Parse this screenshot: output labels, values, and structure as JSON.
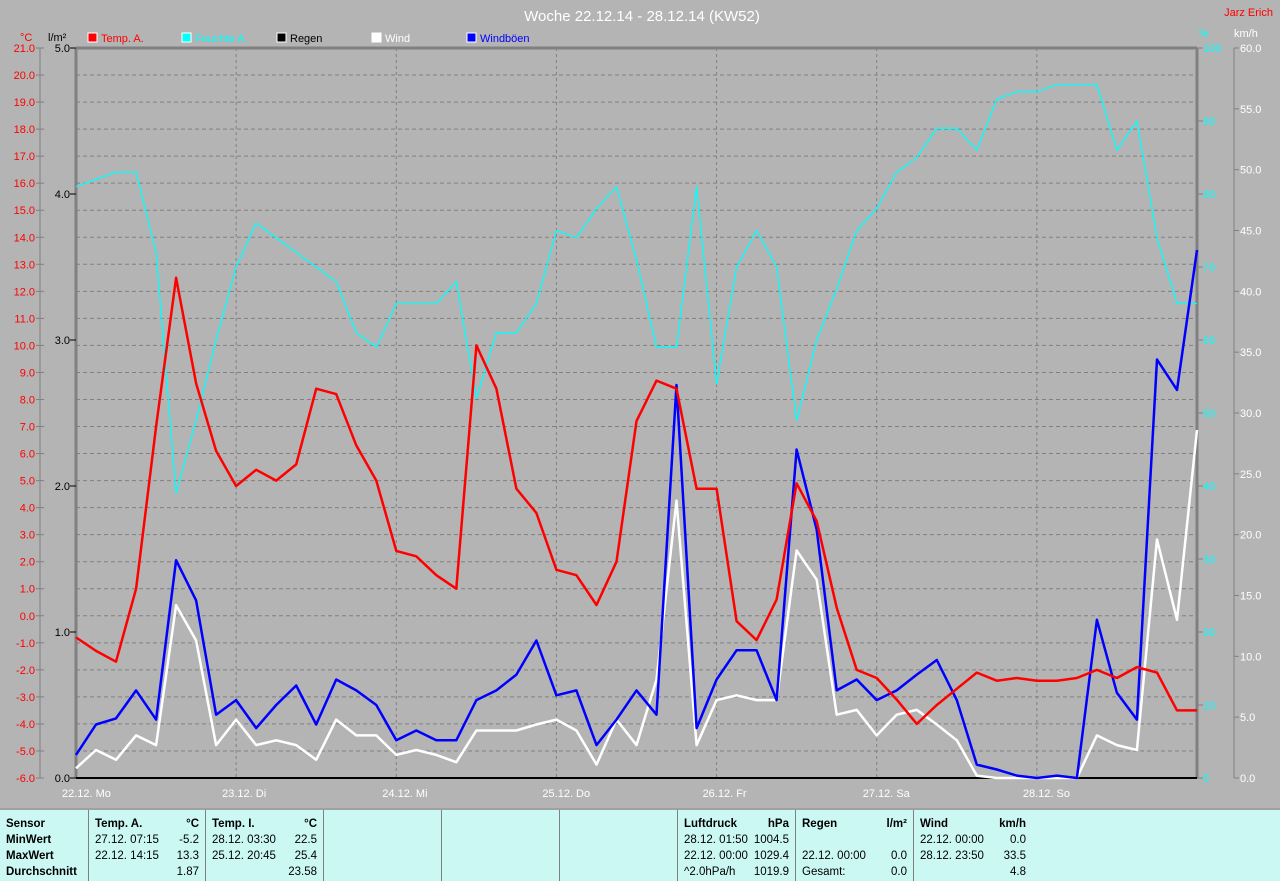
{
  "chart_data": {
    "type": "line",
    "title": "Woche 22.12.14 - 28.12.14 (KW52)",
    "author": "Jarz Erich",
    "axes": {
      "temp": {
        "unit": "°C",
        "range": [
          -6.0,
          21.0
        ],
        "step": 1.0,
        "color": "#ff0000"
      },
      "rain": {
        "unit": "l/m²",
        "range": [
          0.0,
          5.0
        ],
        "step": 1.0,
        "color": "#000000"
      },
      "humidity": {
        "unit": "%",
        "range": [
          0,
          100
        ],
        "step": 10,
        "color": "#00ffff"
      },
      "wind": {
        "unit": "km/h",
        "range": [
          0.0,
          60.0
        ],
        "step": 5.0,
        "color": "#ffffff"
      }
    },
    "x_labels": [
      "22.12. Mo",
      "23.12. Di",
      "24.12. Mi",
      "25.12. Do",
      "26.12. Fr",
      "27.12. Sa",
      "28.12. So"
    ],
    "grid": true,
    "legend_position": "top",
    "x": [
      "22.12. 00:00",
      "22.12. 03:00",
      "22.12. 06:00",
      "22.12. 09:00",
      "22.12. 12:00",
      "22.12. 15:00",
      "22.12. 18:00",
      "22.12. 21:00",
      "23.12. 00:00",
      "23.12. 03:00",
      "23.12. 06:00",
      "23.12. 09:00",
      "23.12. 12:00",
      "23.12. 15:00",
      "23.12. 18:00",
      "23.12. 21:00",
      "24.12. 00:00",
      "24.12. 03:00",
      "24.12. 06:00",
      "24.12. 09:00",
      "24.12. 12:00",
      "24.12. 15:00",
      "24.12. 18:00",
      "24.12. 21:00",
      "25.12. 00:00",
      "25.12. 03:00",
      "25.12. 06:00",
      "25.12. 09:00",
      "25.12. 12:00",
      "25.12. 15:00",
      "25.12. 18:00",
      "25.12. 21:00",
      "26.12. 00:00",
      "26.12. 03:00",
      "26.12. 06:00",
      "26.12. 09:00",
      "26.12. 12:00",
      "26.12. 15:00",
      "26.12. 18:00",
      "26.12. 21:00",
      "27.12. 00:00",
      "27.12. 03:00",
      "27.12. 06:00",
      "27.12. 09:00",
      "27.12. 12:00",
      "27.12. 15:00",
      "27.12. 18:00",
      "27.12. 21:00",
      "28.12. 00:00",
      "28.12. 03:00",
      "28.12. 06:00",
      "28.12. 09:00",
      "28.12. 12:00",
      "28.12. 15:00",
      "28.12. 18:00",
      "28.12. 21:00",
      "29.12. 00:00"
    ],
    "series": [
      {
        "name": "Temp. A.",
        "axis": "temp",
        "color": "#ff0000",
        "values": [
          -0.8,
          -1.3,
          -1.7,
          1.0,
          7.0,
          12.5,
          8.6,
          6.1,
          4.8,
          5.4,
          5.0,
          5.6,
          8.4,
          8.2,
          6.3,
          5.0,
          2.4,
          2.2,
          1.5,
          1.0,
          10.0,
          8.4,
          4.7,
          3.8,
          1.7,
          1.5,
          0.4,
          2.0,
          7.2,
          8.7,
          8.4,
          4.7,
          4.7,
          -0.2,
          -0.9,
          0.6,
          4.9,
          3.5,
          0.3,
          -2.0,
          -2.3,
          -3.1,
          -4.0,
          -3.3,
          -2.7,
          -2.1,
          -2.4,
          -2.3,
          -2.4,
          -2.4,
          -2.3,
          -2.0,
          -2.3,
          -1.9,
          -2.1,
          -3.5,
          -3.5
        ]
      },
      {
        "name": "Feuchte A.",
        "axis": "humidity",
        "color": "#00ffff",
        "values": [
          81,
          82,
          83,
          83,
          72,
          39,
          49,
          60,
          70,
          76,
          74,
          72,
          70,
          68,
          61,
          59,
          65,
          65,
          65,
          68,
          52,
          61,
          61,
          65,
          75,
          74,
          78,
          81,
          71,
          59,
          59,
          81,
          54,
          70,
          75,
          70,
          49,
          60,
          67,
          75,
          78,
          83,
          85,
          89,
          89,
          86,
          93,
          94,
          94,
          95,
          95,
          95,
          86,
          90,
          74,
          65,
          65
        ]
      },
      {
        "name": "Regen",
        "axis": "rain",
        "color": "#000000",
        "values": [
          0,
          0,
          0,
          0,
          0,
          0,
          0,
          0,
          0,
          0,
          0,
          0,
          0,
          0,
          0,
          0,
          0,
          0,
          0,
          0,
          0,
          0,
          0,
          0,
          0,
          0,
          0,
          0,
          0,
          0,
          0,
          0,
          0,
          0,
          0,
          0,
          0,
          0,
          0,
          0,
          0,
          0,
          0,
          0,
          0,
          0,
          0,
          0,
          0,
          0,
          0,
          0,
          0,
          0,
          0,
          0,
          0
        ]
      },
      {
        "name": "Wind",
        "axis": "wind",
        "color": "#ffffff",
        "values": [
          0.8,
          2.3,
          1.5,
          3.5,
          2.7,
          14.2,
          11.3,
          2.7,
          4.8,
          2.7,
          3.1,
          2.7,
          1.5,
          4.8,
          3.5,
          3.5,
          1.9,
          2.3,
          1.9,
          1.3,
          3.9,
          3.9,
          3.9,
          4.4,
          4.8,
          3.9,
          1.1,
          4.8,
          2.7,
          8.1,
          22.8,
          2.7,
          6.4,
          6.8,
          6.4,
          6.4,
          18.7,
          16.3,
          5.2,
          5.6,
          3.5,
          5.2,
          5.6,
          4.4,
          3.1,
          0.2,
          0,
          0,
          0,
          0,
          0,
          3.5,
          2.7,
          2.3,
          19.6,
          13.0,
          28.6
        ]
      },
      {
        "name": "Windböen",
        "axis": "wind",
        "color": "#0000ff",
        "values": [
          1.9,
          4.4,
          4.9,
          7.2,
          4.8,
          17.9,
          14.6,
          5.2,
          6.4,
          4.1,
          6.0,
          7.6,
          4.4,
          8.1,
          7.2,
          6.0,
          3.1,
          3.9,
          3.1,
          3.1,
          6.4,
          7.2,
          8.5,
          11.3,
          6.8,
          7.2,
          2.7,
          4.8,
          7.2,
          5.2,
          32.3,
          4.1,
          8.1,
          10.5,
          10.5,
          6.4,
          27.0,
          20.4,
          7.2,
          8.1,
          6.4,
          7.2,
          8.5,
          9.7,
          6.4,
          1.1,
          0.7,
          0.2,
          0,
          0.2,
          0,
          13.0,
          7.0,
          4.8,
          34.4,
          31.9,
          43.4
        ]
      }
    ]
  },
  "stats": {
    "sensor": {
      "header": "Sensor",
      "rows": [
        "MinWert",
        "MaxWert",
        "Durchschnitt"
      ]
    },
    "temp_a": {
      "header": "Temp. A.",
      "unit": "°C",
      "min_time": "27.12.  07:15",
      "min": "-5.2",
      "max_time": "22.12.  14:15",
      "max": "13.3",
      "avg": "1.87"
    },
    "temp_i": {
      "header": "Temp. I.",
      "unit": "°C",
      "min_time": "28.12.  03:30",
      "min": "22.5",
      "max_time": "25.12.  20:45",
      "max": "25.4",
      "avg": "23.58"
    },
    "pressure": {
      "header": "Luftdruck",
      "unit": "hPa",
      "min_time": "28.12.  01:50",
      "min": "1004.5",
      "max_time": "22.12.  00:00",
      "max": "1029.4",
      "trend": "^2.0hPa/h",
      "avg": "1019.9"
    },
    "rain": {
      "header": "Regen",
      "unit": "l/m²",
      "max_time": "22.12.  00:00",
      "max": "0.0",
      "total_label": "Gesamt:",
      "total": "0.0"
    },
    "wind": {
      "header": "Wind",
      "unit": "km/h",
      "min_time": "22.12.  00:00",
      "min": "0.0",
      "max_time": "28.12.  23:50",
      "max": "33.5",
      "avg": "4.8"
    }
  }
}
